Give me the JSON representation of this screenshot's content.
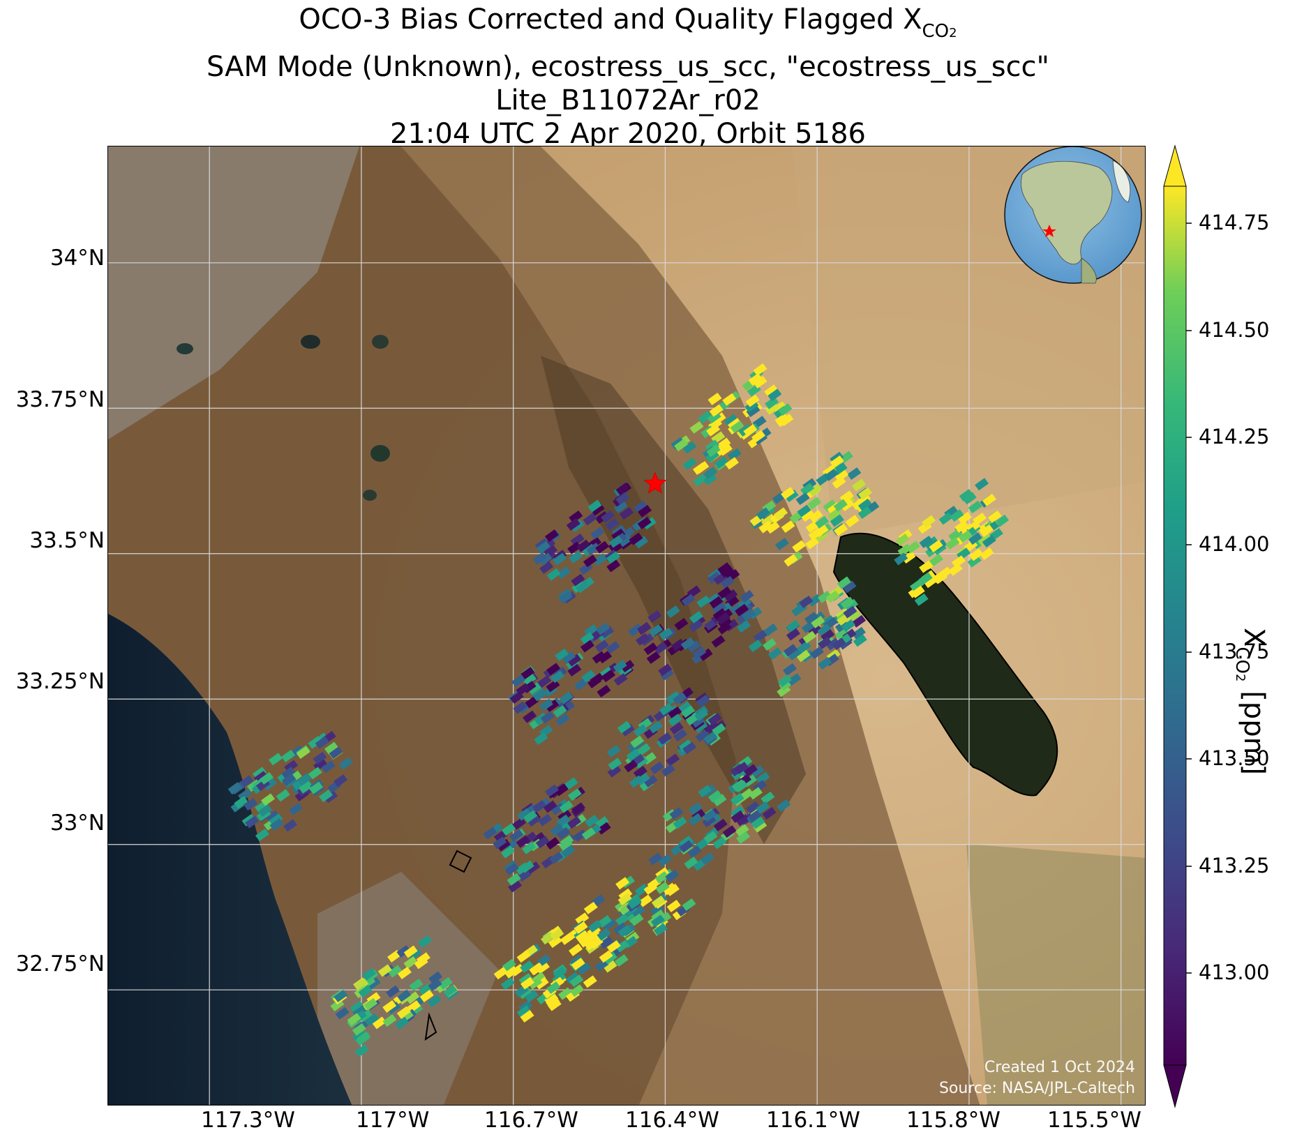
{
  "title": {
    "line1_main": "OCO-3 Bias Corrected and Quality Flagged X",
    "line1_sub": "CO",
    "line1_subsub": "2",
    "line2": "SAM Mode (Unknown), ecostress_us_scc, \"ecostress_us_scc\"",
    "line3": "Lite_B11072Ar_r02",
    "line4": "21:04 UTC 2 Apr 2020, Orbit 5186"
  },
  "map": {
    "projection": "PlateCarree",
    "lon_range": [
      -117.5,
      -115.45
    ],
    "lat_range": [
      32.55,
      34.2
    ],
    "gridlines": true,
    "basemap": "satellite imagery",
    "lat_ticks": [
      "34°N",
      "33.75°N",
      "33.5°N",
      "33.25°N",
      "33°N",
      "32.75°N"
    ],
    "lon_ticks": [
      "117.3°W",
      "117°W",
      "116.7°W",
      "116.4°W",
      "116.1°W",
      "115.8°W",
      "115.5°W"
    ],
    "target_marker": {
      "lon": -116.42,
      "lat": 33.62,
      "symbol": "red-star"
    },
    "inset_globe": {
      "marker": "red-star",
      "region": "North America",
      "placement": "top-right"
    },
    "credit_line1": "Created 1 Oct 2024",
    "credit_line2": "Source: NASA/JPL-Caltech"
  },
  "chart_data": {
    "type": "heatmap",
    "variable": "XCO2",
    "units": "ppm",
    "colormap": "viridis",
    "vmin": 412.8,
    "vmax": 414.85,
    "extend": "both",
    "colorbar_ticks": [
      "414.75",
      "414.50",
      "414.25",
      "414.00",
      "413.75",
      "413.50",
      "413.25",
      "413.00"
    ],
    "colorbar_label_main": "X",
    "colorbar_label_sub": "CO",
    "colorbar_label_subsub": "2",
    "colorbar_label_units": " [ppm]",
    "swaths": [
      {
        "lon": -116.28,
        "lat": 33.72,
        "mean": 414.55
      },
      {
        "lon": -116.12,
        "lat": 33.57,
        "mean": 414.6
      },
      {
        "lon": -115.85,
        "lat": 33.52,
        "mean": 414.7
      },
      {
        "lon": -116.55,
        "lat": 33.52,
        "mean": 413.3
      },
      {
        "lon": -116.35,
        "lat": 33.38,
        "mean": 413.2
      },
      {
        "lon": -116.12,
        "lat": 33.36,
        "mean": 413.9
      },
      {
        "lon": -116.6,
        "lat": 33.28,
        "mean": 413.4
      },
      {
        "lon": -116.42,
        "lat": 33.18,
        "mean": 413.6
      },
      {
        "lon": -116.3,
        "lat": 33.05,
        "mean": 413.8
      },
      {
        "lon": -116.65,
        "lat": 33.02,
        "mean": 413.6
      },
      {
        "lon": -117.15,
        "lat": 33.1,
        "mean": 413.8
      },
      {
        "lon": -116.48,
        "lat": 32.88,
        "mean": 414.3
      },
      {
        "lon": -116.95,
        "lat": 32.74,
        "mean": 414.3
      },
      {
        "lon": -116.62,
        "lat": 32.79,
        "mean": 414.6
      }
    ]
  }
}
